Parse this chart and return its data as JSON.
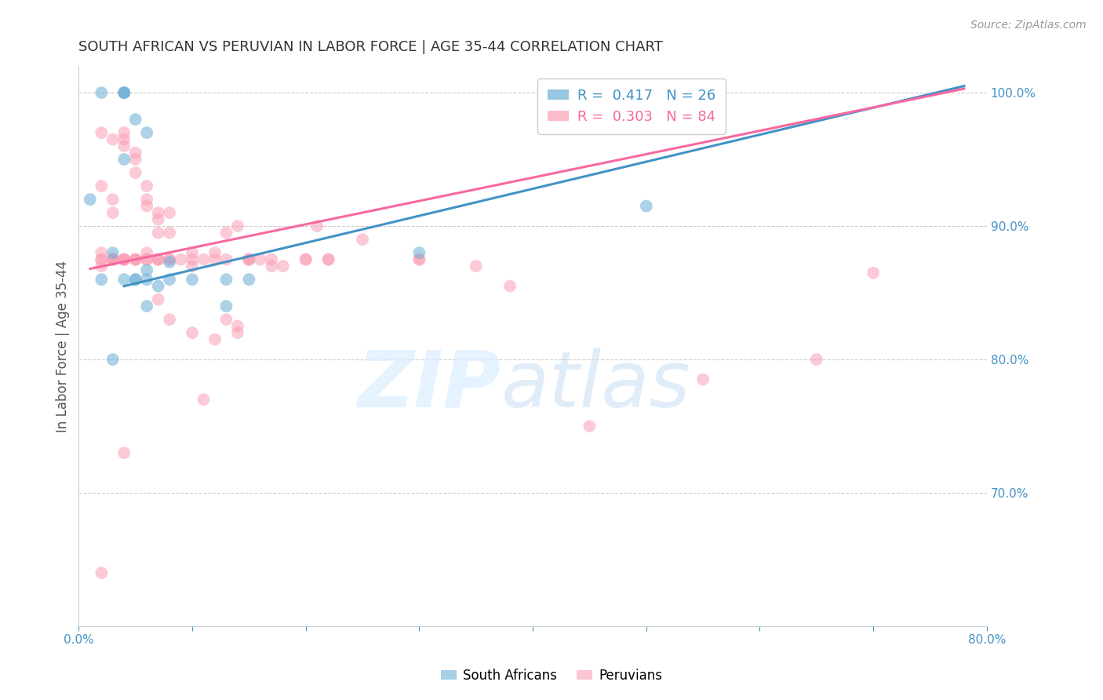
{
  "title": "SOUTH AFRICAN VS PERUVIAN IN LABOR FORCE | AGE 35-44 CORRELATION CHART",
  "source": "Source: ZipAtlas.com",
  "ylabel": "In Labor Force | Age 35-44",
  "xlim": [
    0.0,
    0.8
  ],
  "ylim": [
    0.6,
    1.02
  ],
  "xticks": [
    0.0,
    0.1,
    0.2,
    0.3,
    0.4,
    0.5,
    0.6,
    0.7,
    0.8
  ],
  "xticklabels": [
    "0.0%",
    "",
    "",
    "",
    "",
    "",
    "",
    "",
    "80.0%"
  ],
  "ytick_right_labels": [
    "100.0%",
    "90.0%",
    "80.0%",
    "70.0%"
  ],
  "ytick_right_values": [
    1.0,
    0.9,
    0.8,
    0.7
  ],
  "blue_color": "#6baed6",
  "pink_color": "#fa9fb5",
  "blue_line_color": "#4292c6",
  "pink_line_color": "#f768a1",
  "legend_blue_label": "R =  0.417   N = 26",
  "legend_pink_label": "R =  0.303   N = 84",
  "grid_color": "#cccccc",
  "title_color": "#333333",
  "right_axis_color": "#4292c6",
  "blue_line_x0": 0.04,
  "blue_line_y0": 0.855,
  "blue_line_x1": 0.78,
  "blue_line_y1": 1.005,
  "pink_line_x0": 0.01,
  "pink_line_y0": 0.868,
  "pink_line_x1": 0.78,
  "pink_line_y1": 1.003,
  "blue_scatter_x": [
    0.02,
    0.04,
    0.04,
    0.04,
    0.05,
    0.06,
    0.01,
    0.03,
    0.02,
    0.04,
    0.05,
    0.06,
    0.06,
    0.07,
    0.08,
    0.1,
    0.13,
    0.13,
    0.15,
    0.3,
    0.5,
    0.03,
    0.06,
    0.08,
    0.05,
    0.04
  ],
  "blue_scatter_y": [
    1.0,
    1.0,
    1.0,
    1.0,
    0.98,
    0.97,
    0.92,
    0.88,
    0.86,
    0.86,
    0.86,
    0.86,
    0.84,
    0.855,
    0.86,
    0.86,
    0.86,
    0.84,
    0.86,
    0.88,
    0.915,
    0.8,
    0.867,
    0.873,
    0.86,
    0.95
  ],
  "pink_scatter_x": [
    0.02,
    0.03,
    0.03,
    0.04,
    0.02,
    0.03,
    0.04,
    0.04,
    0.05,
    0.05,
    0.05,
    0.06,
    0.06,
    0.06,
    0.07,
    0.07,
    0.07,
    0.08,
    0.08,
    0.09,
    0.1,
    0.1,
    0.11,
    0.12,
    0.13,
    0.14,
    0.15,
    0.16,
    0.17,
    0.18,
    0.2,
    0.22,
    0.25,
    0.3,
    0.02,
    0.02,
    0.03,
    0.03,
    0.04,
    0.04,
    0.05,
    0.06,
    0.07,
    0.08,
    0.12,
    0.13,
    0.14,
    0.15,
    0.02,
    0.03,
    0.04,
    0.05,
    0.06,
    0.07,
    0.08,
    0.02,
    0.03,
    0.04,
    0.06,
    0.07,
    0.08,
    0.1,
    0.12,
    0.13,
    0.15,
    0.17,
    0.2,
    0.22,
    0.3,
    0.35,
    0.38,
    0.45,
    0.55,
    0.65,
    0.7,
    0.02,
    0.04,
    0.11,
    0.21,
    0.14,
    0.1,
    0.07,
    0.05,
    0.03
  ],
  "pink_scatter_y": [
    0.93,
    0.92,
    0.91,
    0.965,
    0.97,
    0.965,
    0.96,
    0.97,
    0.95,
    0.94,
    0.955,
    0.92,
    0.915,
    0.93,
    0.905,
    0.91,
    0.895,
    0.91,
    0.895,
    0.875,
    0.87,
    0.88,
    0.875,
    0.88,
    0.895,
    0.9,
    0.875,
    0.875,
    0.87,
    0.87,
    0.875,
    0.875,
    0.89,
    0.875,
    0.87,
    0.88,
    0.875,
    0.875,
    0.875,
    0.875,
    0.875,
    0.88,
    0.845,
    0.83,
    0.815,
    0.83,
    0.825,
    0.875,
    0.875,
    0.875,
    0.875,
    0.875,
    0.875,
    0.875,
    0.875,
    0.875,
    0.875,
    0.875,
    0.875,
    0.875,
    0.875,
    0.875,
    0.875,
    0.875,
    0.875,
    0.875,
    0.875,
    0.875,
    0.875,
    0.87,
    0.855,
    0.75,
    0.785,
    0.8,
    0.865,
    0.64,
    0.73,
    0.77,
    0.9,
    0.82,
    0.82,
    0.875,
    0.875,
    0.875
  ]
}
